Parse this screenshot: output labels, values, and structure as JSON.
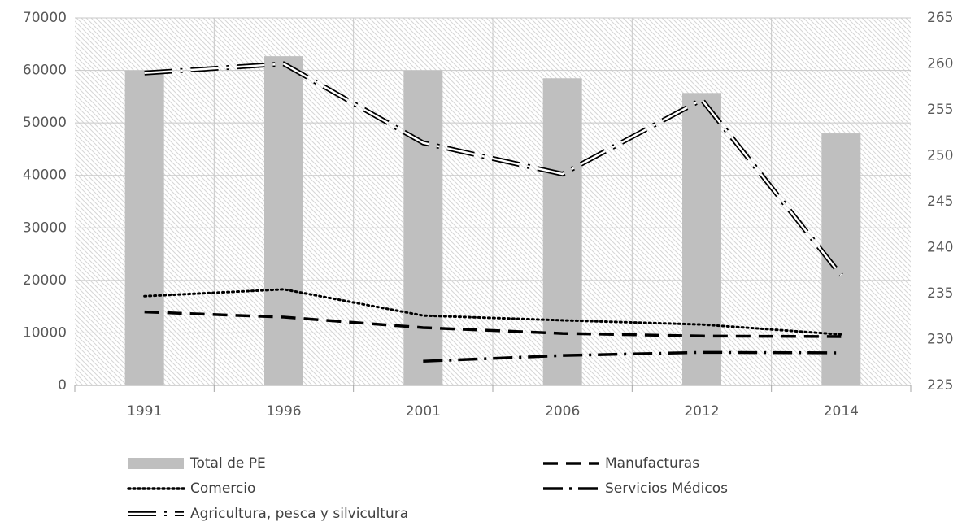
{
  "chart_data": {
    "type": "bar",
    "categories": [
      "1991",
      "1996",
      "2001",
      "2006",
      "2012",
      "2014"
    ],
    "ylim": [
      0,
      70000
    ],
    "yticks": [
      0,
      10000,
      20000,
      30000,
      40000,
      50000,
      60000,
      70000
    ],
    "y2lim": [
      225,
      265
    ],
    "y2ticks": [
      225,
      230,
      235,
      240,
      245,
      250,
      255,
      260,
      265
    ],
    "grid": true,
    "series": [
      {
        "name": "Total de PE",
        "type": "bar",
        "color": "#bfbfbf",
        "values": [
          60000,
          62700,
          60000,
          58500,
          55700,
          48000
        ]
      },
      {
        "name": "Manufacturas",
        "type": "line",
        "color": "#000000",
        "style": "dashed",
        "values": [
          14000,
          13000,
          11000,
          9900,
          9400,
          9300
        ]
      },
      {
        "name": "Comercio",
        "type": "line",
        "color": "#000000",
        "style": "dotted",
        "values": [
          17000,
          18300,
          13300,
          12400,
          11600,
          9700
        ]
      },
      {
        "name": "Servicios Médicos",
        "type": "line",
        "color": "#000000",
        "style": "dashdot",
        "values": [
          null,
          null,
          4600,
          5700,
          6300,
          6200
        ]
      },
      {
        "name": "Agricultura, pesca y silvicultura",
        "type": "line",
        "color": "#000000",
        "style": "double",
        "axis": "y2",
        "values": [
          259,
          260,
          251.4,
          248,
          256.1,
          237
        ]
      }
    ]
  }
}
